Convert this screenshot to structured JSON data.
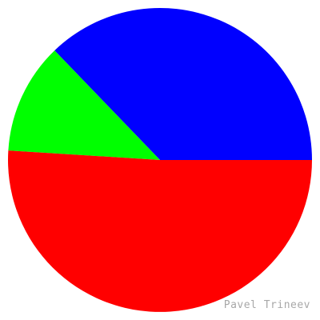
{
  "chart_data": {
    "type": "pie",
    "title": "",
    "start_angle_deg": 0,
    "direction": "counterclockwise",
    "series": [
      {
        "values": [
          0.372,
          0.118,
          0.51
        ],
        "colors": [
          "#0000ff",
          "#00ff00",
          "#ff0000"
        ]
      }
    ],
    "legend": "none"
  },
  "credit": "Pavel Trineev"
}
